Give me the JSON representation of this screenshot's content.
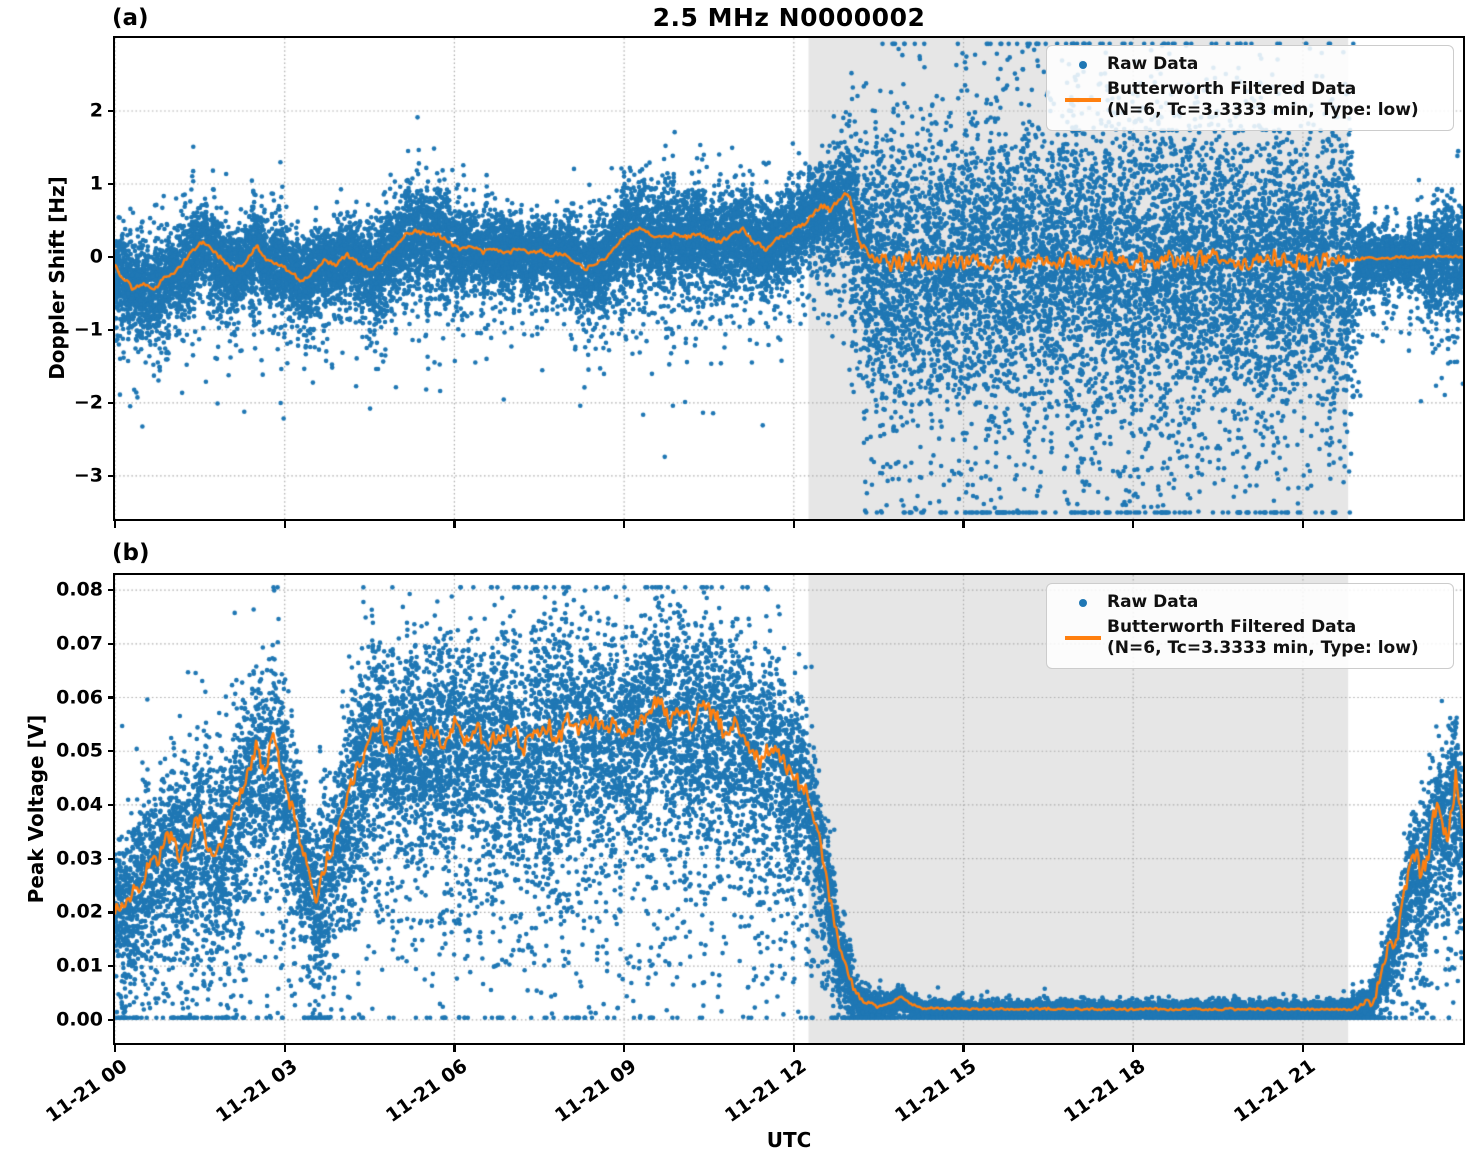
{
  "figure": {
    "title": "2.5 MHz N0000002",
    "xlabel": "UTC",
    "panel_a_label": "(a)",
    "panel_b_label": "(b)"
  },
  "legend": {
    "raw_label": "Raw Data",
    "filtered_label": "Butterworth Filtered Data",
    "filtered_sublabel": "(N=6, Tc=3.3333 min, Type: low)"
  },
  "colors": {
    "raw": "#1f77b4",
    "filtered": "#ff7f0e",
    "shade": "#e6e6e6",
    "grid": "#ababab",
    "spine": "#000000"
  },
  "x_axis": {
    "unit": "hours after 2023-11-21 00:00 UTC",
    "lim_hours": [
      0,
      23.83
    ],
    "tick_hours": [
      0,
      3,
      6,
      9,
      12,
      15,
      18,
      21
    ],
    "tick_labels": [
      "11-21 00",
      "11-21 03",
      "11-21 06",
      "11-21 09",
      "11-21 12",
      "11-21 15",
      "11-21 18",
      "11-21 21"
    ]
  },
  "chart_data": [
    {
      "type": "scatter+line",
      "panel": "(a)",
      "ylabel": "Doppler Shift [Hz]",
      "series": [
        {
          "name": "Raw Data",
          "kind": "scatter"
        },
        {
          "name": "Butterworth Filtered Data (N=6, Tc=3.3333 min, Type: low)",
          "kind": "line"
        }
      ],
      "ylim": [
        -3.59,
        3.0
      ],
      "yclip": [
        -3.5,
        2.92
      ],
      "ytick_values": [
        2,
        1,
        0,
        -1,
        -2,
        -3
      ],
      "ytick_labels": [
        "2",
        "1",
        "0",
        "−1",
        "−2",
        "−3"
      ],
      "shade_hours": [
        12.26,
        21.8
      ],
      "filtered_x": [
        0,
        0.15,
        0.3,
        0.5,
        0.7,
        0.85,
        1.0,
        1.2,
        1.4,
        1.55,
        1.7,
        1.9,
        2.1,
        2.3,
        2.5,
        2.7,
        2.9,
        3.1,
        3.3,
        3.5,
        3.7,
        3.9,
        4.1,
        4.3,
        4.5,
        4.7,
        4.9,
        5.1,
        5.3,
        5.5,
        5.7,
        5.9,
        6.1,
        6.3,
        6.5,
        6.7,
        6.9,
        7.1,
        7.3,
        7.5,
        7.7,
        7.9,
        8.1,
        8.3,
        8.5,
        8.7,
        8.9,
        9.1,
        9.3,
        9.5,
        9.7,
        9.9,
        10.1,
        10.3,
        10.5,
        10.7,
        10.9,
        11.1,
        11.3,
        11.5,
        11.7,
        11.9,
        12.1,
        12.3,
        12.5,
        12.65,
        12.8,
        12.95,
        13.05,
        13.15,
        13.3,
        13.6,
        14.0,
        15.0,
        16.0,
        17.0,
        18.0,
        19.0,
        20.0,
        21.0,
        21.8,
        22.1,
        22.5,
        23.0,
        23.4,
        23.83
      ],
      "filtered_y": [
        -0.12,
        -0.3,
        -0.42,
        -0.35,
        -0.45,
        -0.3,
        -0.25,
        -0.1,
        0.12,
        0.2,
        0.1,
        -0.05,
        -0.18,
        -0.08,
        0.15,
        -0.05,
        -0.1,
        -0.22,
        -0.32,
        -0.2,
        -0.05,
        -0.12,
        0.05,
        -0.08,
        -0.18,
        -0.08,
        0.1,
        0.28,
        0.35,
        0.3,
        0.32,
        0.2,
        0.1,
        0.16,
        0.05,
        0.12,
        0.05,
        0.12,
        0.04,
        0.1,
        0.02,
        0.06,
        -0.04,
        -0.18,
        -0.1,
        0.0,
        0.2,
        0.33,
        0.42,
        0.3,
        0.27,
        0.31,
        0.27,
        0.33,
        0.24,
        0.2,
        0.3,
        0.38,
        0.2,
        0.12,
        0.26,
        0.3,
        0.42,
        0.55,
        0.72,
        0.6,
        0.8,
        0.88,
        0.62,
        0.25,
        0.02,
        -0.06,
        -0.05,
        -0.05,
        -0.06,
        -0.04,
        -0.06,
        -0.05,
        -0.05,
        -0.04,
        -0.05,
        -0.02,
        -0.01,
        0.0,
        0.01,
        0.0
      ],
      "jitter_x": [
        0,
        12.0,
        12.4,
        13.2,
        13.4,
        21.6,
        21.9,
        22.3,
        23.83
      ],
      "jitter_amp": [
        0.045,
        0.045,
        0.06,
        0.1,
        0.17,
        0.17,
        0.05,
        0.025,
        0.025
      ],
      "raw_hw_x": [
        0,
        0.5,
        1.0,
        1.4,
        1.8,
        2.4,
        3.0,
        3.6,
        4.2,
        4.8,
        5.4,
        6.0,
        6.6,
        7.2,
        7.8,
        8.4,
        9.0,
        9.6,
        10.2,
        10.8,
        11.4,
        12.0,
        12.4,
        12.8,
        13.1,
        13.35,
        13.8,
        15,
        17,
        19,
        21,
        21.8,
        22.05,
        22.5,
        23.0,
        23.4,
        23.65,
        23.83
      ],
      "raw_hw": [
        0.5,
        0.48,
        0.42,
        0.5,
        0.42,
        0.48,
        0.45,
        0.42,
        0.4,
        0.44,
        0.52,
        0.46,
        0.4,
        0.42,
        0.38,
        0.44,
        0.52,
        0.58,
        0.5,
        0.55,
        0.48,
        0.42,
        0.5,
        0.6,
        0.9,
        1.35,
        1.5,
        1.55,
        1.55,
        1.5,
        1.5,
        1.45,
        0.32,
        0.3,
        0.35,
        0.5,
        0.6,
        0.55
      ],
      "outlier_x": [
        0,
        12.2,
        13.3,
        21.8,
        22.1,
        23.0,
        23.83
      ],
      "outlier_p": [
        0.012,
        0.015,
        0.03,
        0.03,
        0.008,
        0.01,
        0.03
      ],
      "skew_down": 0.1,
      "skew_scale": 1.3,
      "n_points": 24000,
      "dot_r": 2.3
    },
    {
      "type": "scatter+line",
      "panel": "(b)",
      "ylabel": "Peak Voltage [V]",
      "series": [
        {
          "name": "Raw Data",
          "kind": "scatter"
        },
        {
          "name": "Butterworth Filtered Data (N=6, Tc=3.3333 min, Type: low)",
          "kind": "line"
        }
      ],
      "ylim": [
        -0.0043,
        0.0828
      ],
      "yclip": [
        0.0004,
        0.0805
      ],
      "ytick_values": [
        0.08,
        0.07,
        0.06,
        0.05,
        0.04,
        0.03,
        0.02,
        0.01,
        0.0
      ],
      "ytick_labels": [
        "0.08",
        "0.07",
        "0.06",
        "0.05",
        "0.04",
        "0.03",
        "0.02",
        "0.01",
        "0.00"
      ],
      "shade_hours": [
        12.26,
        21.8
      ],
      "filtered_x": [
        0,
        0.2,
        0.4,
        0.6,
        0.8,
        1.0,
        1.15,
        1.3,
        1.5,
        1.65,
        1.8,
        2.0,
        2.15,
        2.3,
        2.5,
        2.65,
        2.8,
        3.0,
        3.2,
        3.4,
        3.55,
        3.7,
        3.9,
        4.1,
        4.3,
        4.5,
        4.7,
        4.85,
        5.0,
        5.2,
        5.4,
        5.6,
        5.8,
        6.0,
        6.2,
        6.4,
        6.6,
        6.8,
        7.0,
        7.2,
        7.4,
        7.6,
        7.8,
        8.0,
        8.2,
        8.4,
        8.6,
        8.8,
        9.0,
        9.2,
        9.4,
        9.6,
        9.8,
        10.0,
        10.2,
        10.4,
        10.6,
        10.8,
        11.0,
        11.2,
        11.4,
        11.6,
        11.8,
        12.0,
        12.2,
        12.35,
        12.5,
        12.65,
        12.8,
        12.95,
        13.1,
        13.3,
        13.5,
        13.7,
        13.9,
        14.05,
        14.3,
        15,
        16,
        17,
        18,
        19,
        20,
        21,
        21.8,
        22.0,
        22.2,
        22.4,
        22.6,
        22.8,
        22.95,
        23.1,
        23.25,
        23.4,
        23.55,
        23.7,
        23.83
      ],
      "filtered_y": [
        0.021,
        0.022,
        0.025,
        0.028,
        0.031,
        0.034,
        0.03,
        0.033,
        0.037,
        0.033,
        0.031,
        0.036,
        0.04,
        0.044,
        0.05,
        0.046,
        0.052,
        0.046,
        0.036,
        0.028,
        0.023,
        0.028,
        0.034,
        0.041,
        0.047,
        0.053,
        0.055,
        0.049,
        0.052,
        0.054,
        0.051,
        0.054,
        0.052,
        0.055,
        0.052,
        0.054,
        0.051,
        0.053,
        0.054,
        0.05,
        0.053,
        0.055,
        0.052,
        0.056,
        0.053,
        0.057,
        0.054,
        0.056,
        0.052,
        0.055,
        0.057,
        0.06,
        0.055,
        0.057,
        0.054,
        0.06,
        0.056,
        0.053,
        0.055,
        0.051,
        0.048,
        0.052,
        0.048,
        0.046,
        0.043,
        0.038,
        0.031,
        0.022,
        0.013,
        0.009,
        0.005,
        0.003,
        0.0025,
        0.003,
        0.0045,
        0.003,
        0.0022,
        0.002,
        0.002,
        0.002,
        0.002,
        0.002,
        0.002,
        0.002,
        0.002,
        0.0025,
        0.004,
        0.008,
        0.014,
        0.022,
        0.03,
        0.026,
        0.033,
        0.04,
        0.034,
        0.045,
        0.038
      ],
      "jitter_x": [
        0,
        12.2,
        13.0,
        13.6,
        21.8,
        22.1,
        22.6,
        23.83
      ],
      "jitter_amp": [
        0.0025,
        0.0025,
        0.0012,
        0.0003,
        0.0003,
        0.001,
        0.004,
        0.005
      ],
      "raw_hw_x": [
        0,
        0.5,
        1,
        1.5,
        2,
        2.5,
        3,
        3.5,
        4,
        4.5,
        5,
        6,
        7,
        8,
        9,
        10,
        11,
        11.6,
        12.1,
        12.5,
        12.9,
        13.3,
        13.7,
        14.2,
        15,
        17,
        19,
        21,
        21.8,
        22.2,
        22.6,
        23,
        23.4,
        23.83
      ],
      "raw_hw": [
        0.01,
        0.011,
        0.012,
        0.013,
        0.014,
        0.014,
        0.013,
        0.011,
        0.013,
        0.014,
        0.014,
        0.015,
        0.015,
        0.016,
        0.016,
        0.015,
        0.015,
        0.014,
        0.012,
        0.009,
        0.005,
        0.002,
        0.0015,
        0.0013,
        0.0012,
        0.0012,
        0.0012,
        0.0012,
        0.0013,
        0.002,
        0.005,
        0.008,
        0.011,
        0.012
      ],
      "outlier_x": [
        0,
        12,
        13.5,
        21.8,
        22.3,
        23.83
      ],
      "outlier_p": [
        0.012,
        0.012,
        0.003,
        0.003,
        0.012,
        0.015
      ],
      "skew_down": 0.22,
      "skew_scale": 1.4,
      "n_points": 21000,
      "dot_r": 2.3
    }
  ]
}
